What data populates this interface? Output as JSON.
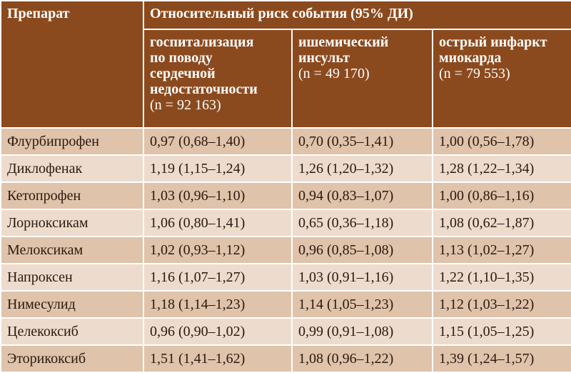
{
  "table": {
    "header": {
      "drug": "Препарат",
      "group": "Относительный риск события (95% ДИ)",
      "columns": [
        {
          "title_lines": [
            "госпитализация",
            "по поводу",
            "сердечной",
            "недостаточности"
          ],
          "n": "(n = 92 163)"
        },
        {
          "title_lines": [
            "ишемический",
            "инсульт"
          ],
          "n": "(n = 49 170)"
        },
        {
          "title_lines": [
            "острый инфаркт",
            "миокарда"
          ],
          "n": "(n = 79 553)"
        }
      ]
    },
    "rows": [
      [
        "Флурбипрофен",
        "0,97 (0,68–1,40)",
        "0,70 (0,35–1,41)",
        "1,00 (0,56–1,78)"
      ],
      [
        "Диклофенак",
        "1,19 (1,15–1,24)",
        "1,26 (1,20–1,32)",
        "1,28 (1,22–1,34)"
      ],
      [
        "Кетопрофен",
        "1,03 (0,96–1,10)",
        "0,94 (0,83–1,07)",
        "1,00 (0,86–1,16)"
      ],
      [
        "Лорноксикам",
        "1,06 (0,80–1,41)",
        "0,65 (0,36–1,18)",
        "1,08 (0,62–1,87)"
      ],
      [
        "Мелоксикам",
        "1,02 (0,93–1,12)",
        "0,96 (0,85–1,08)",
        "1,13 (1,02–1,27)"
      ],
      [
        "Напроксен",
        "1,16 (1,07–1,27)",
        "1,03 (0,91–1,16)",
        "1,22 (1,10–1,35)"
      ],
      [
        "Нимесулид",
        "1,18 (1,14–1,23)",
        "1,14 (1,05–1,23)",
        "1,12 (1,03–1,22)"
      ],
      [
        "Целекоксиб",
        "0,96 (0,90–1,02)",
        "0,99 (0,91–1,08)",
        "1,15 (1,05–1,25)"
      ],
      [
        "Эторикоксиб",
        "1,51 (1,41–1,62)",
        "1,08 (0,96–1,22)",
        "1,39 (1,24–1,57)"
      ]
    ]
  }
}
